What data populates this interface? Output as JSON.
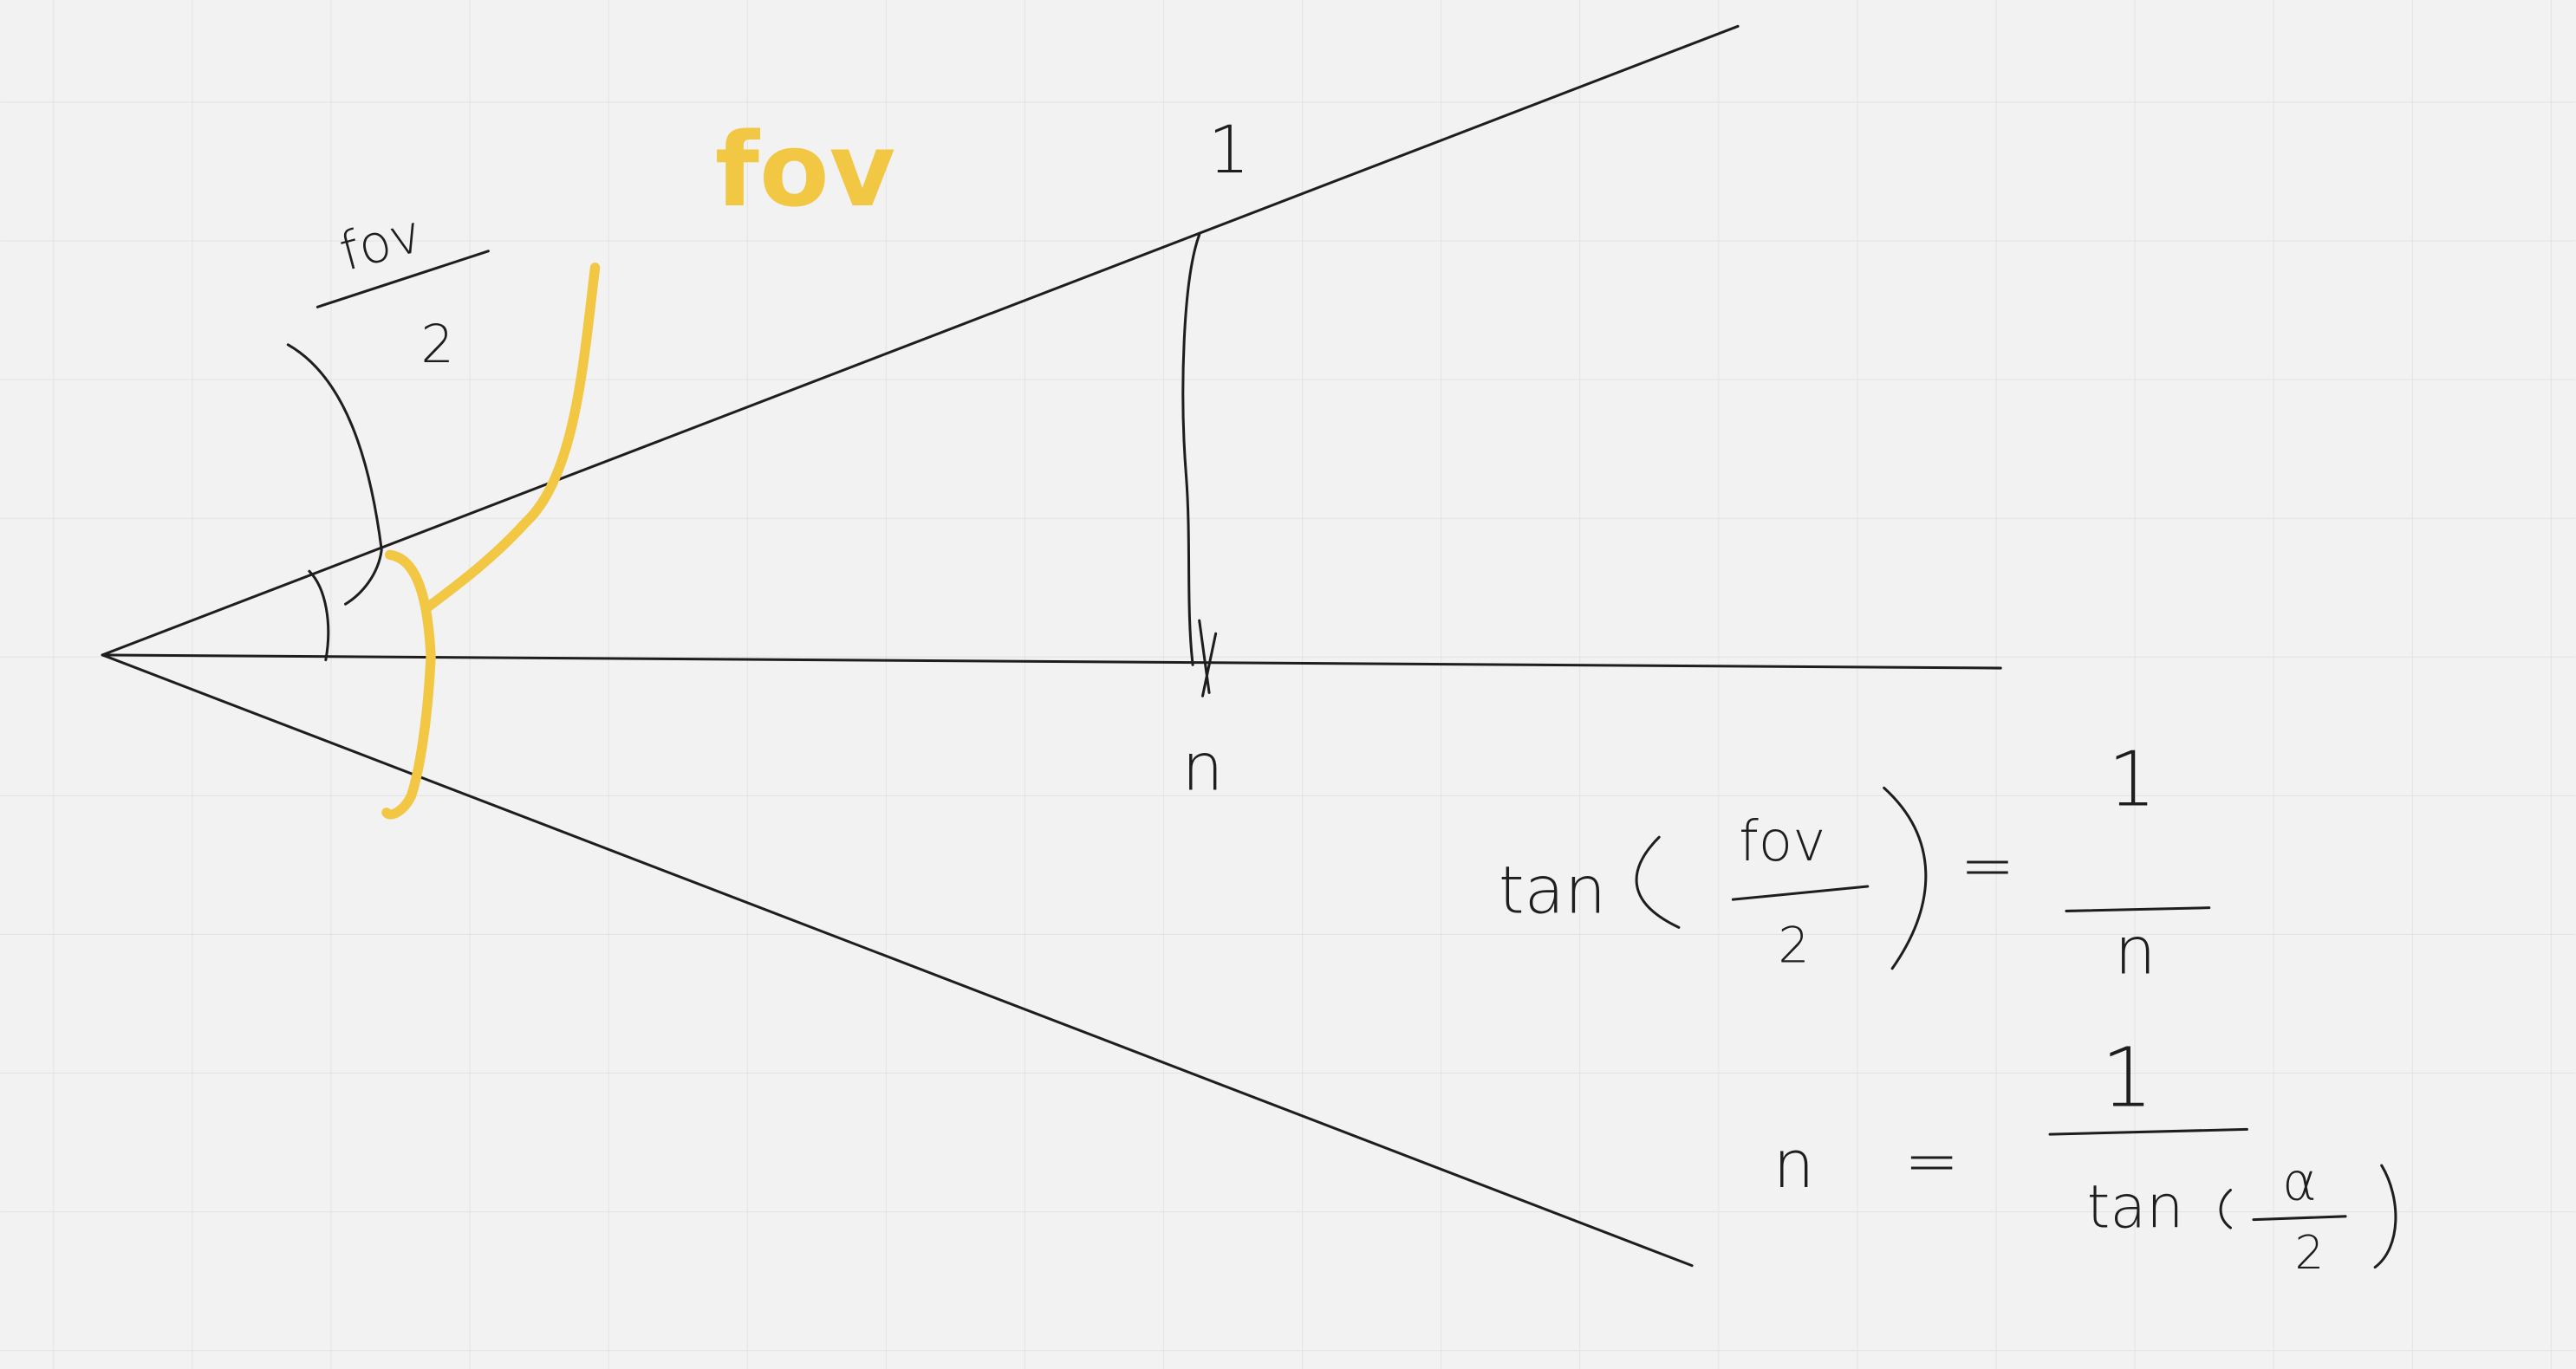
{
  "labels": {
    "half_angle": {
      "numerator": "fov",
      "denominator": "2"
    },
    "angle": "fov",
    "opposite": "1",
    "adjacent": "n"
  },
  "equations": [
    {
      "function": "tan",
      "argument": {
        "numerator": "fov",
        "denominator": "2"
      },
      "operator": "=",
      "rhs": {
        "numerator": "1",
        "denominator": "n"
      }
    },
    {
      "lhs": "n",
      "operator": "=",
      "rhs": {
        "numerator": "1",
        "function": "tan",
        "argument": {
          "numerator": "α",
          "denominator": "2"
        }
      }
    }
  ]
}
